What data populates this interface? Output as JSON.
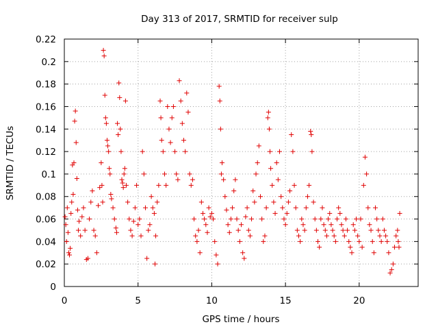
{
  "chart_data": {
    "type": "scatter",
    "title": "Day 313 of 2017, SRMTID for receiver sulp",
    "xlabel": "GPS time / hours",
    "ylabel": "SRMTID / TECUs",
    "xlim": [
      0,
      24
    ],
    "ylim": [
      0,
      0.22
    ],
    "x_ticks": [
      "0",
      "5",
      "10",
      "15",
      "20"
    ],
    "y_ticks": [
      "0",
      "0.02",
      "0.04",
      "0.06",
      "0.08",
      "0.1",
      "0.12",
      "0.14",
      "0.16",
      "0.18",
      "0.2",
      "0.22"
    ],
    "grid": true,
    "marker": "plus",
    "color": "#e00000",
    "series": [
      {
        "points": [
          [
            0.05,
            0.062
          ],
          [
            0.1,
            0.055
          ],
          [
            0.15,
            0.04
          ],
          [
            0.2,
            0.07
          ],
          [
            0.25,
            0.048
          ],
          [
            0.3,
            0.03
          ],
          [
            0.35,
            0.028
          ],
          [
            0.4,
            0.034
          ],
          [
            0.45,
            0.065
          ],
          [
            0.5,
            0.075
          ],
          [
            0.55,
            0.108
          ],
          [
            0.6,
            0.082
          ],
          [
            0.65,
            0.11
          ],
          [
            0.7,
            0.147
          ],
          [
            0.75,
            0.156
          ],
          [
            0.8,
            0.128
          ],
          [
            0.85,
            0.096
          ],
          [
            0.9,
            0.068
          ],
          [
            0.95,
            0.05
          ],
          [
            1.0,
            0.058
          ],
          [
            1.1,
            0.045
          ],
          [
            1.2,
            0.062
          ],
          [
            1.3,
            0.07
          ],
          [
            1.4,
            0.05
          ],
          [
            1.5,
            0.024
          ],
          [
            1.6,
            0.025
          ],
          [
            1.7,
            0.06
          ],
          [
            1.8,
            0.075
          ],
          [
            1.9,
            0.085
          ],
          [
            2.0,
            0.05
          ],
          [
            2.1,
            0.045
          ],
          [
            2.2,
            0.03
          ],
          [
            2.3,
            0.072
          ],
          [
            2.4,
            0.088
          ],
          [
            2.5,
            0.11
          ],
          [
            2.55,
            0.09
          ],
          [
            2.6,
            0.075
          ],
          [
            2.65,
            0.21
          ],
          [
            2.7,
            0.205
          ],
          [
            2.75,
            0.17
          ],
          [
            2.8,
            0.15
          ],
          [
            2.85,
            0.145
          ],
          [
            2.9,
            0.13
          ],
          [
            2.95,
            0.125
          ],
          [
            3.0,
            0.12
          ],
          [
            3.05,
            0.105
          ],
          [
            3.1,
            0.1
          ],
          [
            3.15,
            0.082
          ],
          [
            3.2,
            0.078
          ],
          [
            3.3,
            0.07
          ],
          [
            3.4,
            0.06
          ],
          [
            3.5,
            0.052
          ],
          [
            3.55,
            0.048
          ],
          [
            3.6,
            0.145
          ],
          [
            3.65,
            0.135
          ],
          [
            3.7,
            0.181
          ],
          [
            3.75,
            0.168
          ],
          [
            3.8,
            0.14
          ],
          [
            3.85,
            0.12
          ],
          [
            3.9,
            0.095
          ],
          [
            3.95,
            0.092
          ],
          [
            4.0,
            0.088
          ],
          [
            4.05,
            0.1
          ],
          [
            4.1,
            0.105
          ],
          [
            4.15,
            0.165
          ],
          [
            4.2,
            0.09
          ],
          [
            4.3,
            0.075
          ],
          [
            4.4,
            0.06
          ],
          [
            4.5,
            0.05
          ],
          [
            4.6,
            0.045
          ],
          [
            4.7,
            0.058
          ],
          [
            4.8,
            0.07
          ],
          [
            4.9,
            0.09
          ],
          [
            5.0,
            0.055
          ],
          [
            5.1,
            0.06
          ],
          [
            5.2,
            0.045
          ],
          [
            5.3,
            0.12
          ],
          [
            5.4,
            0.1
          ],
          [
            5.5,
            0.07
          ],
          [
            5.6,
            0.025
          ],
          [
            5.7,
            0.05
          ],
          [
            5.8,
            0.055
          ],
          [
            5.9,
            0.08
          ],
          [
            6.0,
            0.07
          ],
          [
            6.1,
            0.065
          ],
          [
            6.15,
            0.02
          ],
          [
            6.2,
            0.045
          ],
          [
            6.3,
            0.075
          ],
          [
            6.4,
            0.09
          ],
          [
            6.5,
            0.165
          ],
          [
            6.55,
            0.15
          ],
          [
            6.6,
            0.13
          ],
          [
            6.7,
            0.12
          ],
          [
            6.8,
            0.1
          ],
          [
            6.9,
            0.09
          ],
          [
            7.0,
            0.16
          ],
          [
            7.1,
            0.14
          ],
          [
            7.2,
            0.128
          ],
          [
            7.3,
            0.15
          ],
          [
            7.4,
            0.16
          ],
          [
            7.5,
            0.12
          ],
          [
            7.6,
            0.1
          ],
          [
            7.7,
            0.095
          ],
          [
            7.8,
            0.183
          ],
          [
            7.9,
            0.165
          ],
          [
            8.0,
            0.145
          ],
          [
            8.1,
            0.13
          ],
          [
            8.2,
            0.12
          ],
          [
            8.3,
            0.172
          ],
          [
            8.4,
            0.155
          ],
          [
            8.5,
            0.1
          ],
          [
            8.6,
            0.09
          ],
          [
            8.7,
            0.095
          ],
          [
            8.8,
            0.06
          ],
          [
            8.9,
            0.045
          ],
          [
            9.0,
            0.04
          ],
          [
            9.1,
            0.05
          ],
          [
            9.2,
            0.03
          ],
          [
            9.3,
            0.075
          ],
          [
            9.4,
            0.065
          ],
          [
            9.5,
            0.06
          ],
          [
            9.6,
            0.055
          ],
          [
            9.7,
            0.048
          ],
          [
            9.8,
            0.07
          ],
          [
            9.9,
            0.062
          ],
          [
            10.0,
            0.065
          ],
          [
            10.1,
            0.06
          ],
          [
            10.2,
            0.04
          ],
          [
            10.3,
            0.028
          ],
          [
            10.4,
            0.02
          ],
          [
            10.5,
            0.178
          ],
          [
            10.55,
            0.165
          ],
          [
            10.6,
            0.14
          ],
          [
            10.65,
            0.1
          ],
          [
            10.7,
            0.11
          ],
          [
            10.8,
            0.095
          ],
          [
            10.9,
            0.08
          ],
          [
            11.0,
            0.068
          ],
          [
            11.1,
            0.055
          ],
          [
            11.2,
            0.048
          ],
          [
            11.3,
            0.06
          ],
          [
            11.4,
            0.07
          ],
          [
            11.5,
            0.085
          ],
          [
            11.6,
            0.095
          ],
          [
            11.7,
            0.06
          ],
          [
            11.8,
            0.05
          ],
          [
            11.9,
            0.04
          ],
          [
            12.0,
            0.055
          ],
          [
            12.1,
            0.03
          ],
          [
            12.2,
            0.025
          ],
          [
            12.3,
            0.062
          ],
          [
            12.4,
            0.07
          ],
          [
            12.5,
            0.05
          ],
          [
            12.6,
            0.045
          ],
          [
            12.7,
            0.06
          ],
          [
            12.8,
            0.085
          ],
          [
            12.9,
            0.075
          ],
          [
            13.0,
            0.1
          ],
          [
            13.1,
            0.11
          ],
          [
            13.2,
            0.125
          ],
          [
            13.3,
            0.08
          ],
          [
            13.4,
            0.06
          ],
          [
            13.5,
            0.04
          ],
          [
            13.6,
            0.045
          ],
          [
            13.7,
            0.07
          ],
          [
            13.8,
            0.15
          ],
          [
            13.85,
            0.155
          ],
          [
            13.9,
            0.14
          ],
          [
            13.95,
            0.12
          ],
          [
            14.0,
            0.105
          ],
          [
            14.1,
            0.09
          ],
          [
            14.2,
            0.075
          ],
          [
            14.3,
            0.065
          ],
          [
            14.4,
            0.11
          ],
          [
            14.5,
            0.095
          ],
          [
            14.6,
            0.12
          ],
          [
            14.7,
            0.08
          ],
          [
            14.8,
            0.07
          ],
          [
            14.9,
            0.06
          ],
          [
            15.0,
            0.055
          ],
          [
            15.1,
            0.065
          ],
          [
            15.2,
            0.075
          ],
          [
            15.3,
            0.085
          ],
          [
            15.4,
            0.135
          ],
          [
            15.5,
            0.12
          ],
          [
            15.6,
            0.09
          ],
          [
            15.7,
            0.07
          ],
          [
            15.8,
            0.05
          ],
          [
            15.9,
            0.045
          ],
          [
            16.0,
            0.04
          ],
          [
            16.1,
            0.06
          ],
          [
            16.2,
            0.055
          ],
          [
            16.3,
            0.05
          ],
          [
            16.4,
            0.07
          ],
          [
            16.5,
            0.08
          ],
          [
            16.6,
            0.09
          ],
          [
            16.7,
            0.138
          ],
          [
            16.75,
            0.135
          ],
          [
            16.8,
            0.12
          ],
          [
            16.9,
            0.075
          ],
          [
            17.0,
            0.06
          ],
          [
            17.1,
            0.05
          ],
          [
            17.2,
            0.04
          ],
          [
            17.3,
            0.035
          ],
          [
            17.4,
            0.06
          ],
          [
            17.5,
            0.07
          ],
          [
            17.6,
            0.055
          ],
          [
            17.7,
            0.05
          ],
          [
            17.8,
            0.045
          ],
          [
            17.9,
            0.06
          ],
          [
            18.0,
            0.065
          ],
          [
            18.1,
            0.055
          ],
          [
            18.2,
            0.05
          ],
          [
            18.3,
            0.045
          ],
          [
            18.4,
            0.04
          ],
          [
            18.5,
            0.06
          ],
          [
            18.6,
            0.07
          ],
          [
            18.7,
            0.065
          ],
          [
            18.8,
            0.055
          ],
          [
            18.9,
            0.05
          ],
          [
            19.0,
            0.045
          ],
          [
            19.1,
            0.06
          ],
          [
            19.2,
            0.05
          ],
          [
            19.3,
            0.04
          ],
          [
            19.4,
            0.035
          ],
          [
            19.5,
            0.03
          ],
          [
            19.6,
            0.055
          ],
          [
            19.7,
            0.05
          ],
          [
            19.8,
            0.06
          ],
          [
            19.9,
            0.045
          ],
          [
            20.0,
            0.04
          ],
          [
            20.1,
            0.06
          ],
          [
            20.2,
            0.035
          ],
          [
            20.3,
            0.09
          ],
          [
            20.4,
            0.115
          ],
          [
            20.5,
            0.1
          ],
          [
            20.6,
            0.07
          ],
          [
            20.7,
            0.055
          ],
          [
            20.8,
            0.05
          ],
          [
            20.9,
            0.04
          ],
          [
            21.0,
            0.03
          ],
          [
            21.1,
            0.07
          ],
          [
            21.2,
            0.06
          ],
          [
            21.3,
            0.05
          ],
          [
            21.4,
            0.045
          ],
          [
            21.5,
            0.04
          ],
          [
            21.6,
            0.06
          ],
          [
            21.7,
            0.05
          ],
          [
            21.8,
            0.045
          ],
          [
            21.9,
            0.04
          ],
          [
            22.0,
            0.03
          ],
          [
            22.1,
            0.012
          ],
          [
            22.2,
            0.015
          ],
          [
            22.3,
            0.02
          ],
          [
            22.4,
            0.035
          ],
          [
            22.5,
            0.045
          ],
          [
            22.6,
            0.05
          ],
          [
            22.65,
            0.04
          ],
          [
            22.7,
            0.035
          ],
          [
            22.75,
            0.065
          ]
        ]
      }
    ]
  }
}
